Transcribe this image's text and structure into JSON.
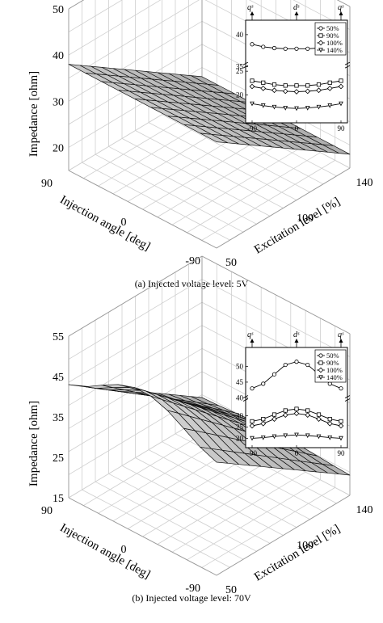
{
  "chart_data": [
    {
      "type": "surface",
      "title": "",
      "caption": "(a) Injected voltage level: 5V",
      "zlabel": "Impedance [ohm]",
      "xlabel": "Injection angle [deg]",
      "ylabel": "Excitation level [%]",
      "zlim": [
        15,
        50
      ],
      "z_ticks": [
        "20",
        "30",
        "40",
        "50"
      ],
      "x_ticks": [
        "90",
        "0",
        "-90"
      ],
      "y_ticks": [
        "50",
        "100",
        "140"
      ],
      "surface": {
        "injection_angle_deg": [
          90,
          0,
          -90
        ],
        "excitation_level_pct": [
          50,
          140
        ],
        "impedance_at_50pct": [
          38,
          38,
          38
        ],
        "impedance_at_140pct": [
          18,
          18,
          18
        ]
      },
      "inset": {
        "x_ticks": [
          "-90",
          "0",
          "90"
        ],
        "y_ticks": [
          "20",
          "25",
          "35",
          "40"
        ],
        "top_markers": [
          "qˢ",
          "dˢ",
          "qˢ"
        ],
        "legend": [
          "50%",
          "90%",
          "100%",
          "140%"
        ],
        "x": [
          -90,
          -67.5,
          -45,
          -22.5,
          0,
          22.5,
          45,
          67.5,
          90
        ],
        "series": [
          {
            "name": "50%",
            "values": [
              38.5,
              38.1,
              37.9,
              37.8,
              37.8,
              37.8,
              37.9,
              38.1,
              38.5
            ]
          },
          {
            "name": "90%",
            "values": [
              23.0,
              22.6,
              22.2,
              22.0,
              22.0,
              22.0,
              22.2,
              22.6,
              23.0
            ]
          },
          {
            "name": "100%",
            "values": [
              21.8,
              21.4,
              21.0,
              20.8,
              20.7,
              20.8,
              21.0,
              21.4,
              21.8
            ]
          },
          {
            "name": "140%",
            "values": [
              18.2,
              17.8,
              17.5,
              17.3,
              17.2,
              17.3,
              17.5,
              17.8,
              18.2
            ]
          }
        ]
      }
    },
    {
      "type": "surface",
      "title": "",
      "caption": "(b) Injected voltage level: 70V",
      "zlabel": "Impedance [ohm]",
      "xlabel": "Injection angle [deg]",
      "ylabel": "Excitation level [%]",
      "zlim": [
        15,
        55
      ],
      "z_ticks": [
        "15",
        "25",
        "35",
        "45",
        "55"
      ],
      "x_ticks": [
        "90",
        "0",
        "-90"
      ],
      "y_ticks": [
        "50",
        "100",
        "140"
      ],
      "surface": {
        "injection_angle_deg": [
          90,
          0,
          -90
        ],
        "excitation_level_pct": [
          50,
          140
        ],
        "impedance_at_50pct": [
          43,
          51,
          43
        ],
        "impedance_at_140pct": [
          20,
          21,
          20
        ]
      },
      "inset": {
        "x_ticks": [
          "-90",
          "0",
          "90"
        ],
        "y_ticks": [
          "20",
          "25",
          "30",
          "40",
          "45",
          "50"
        ],
        "top_markers": [
          "qˢ",
          "dˢ",
          "qˢ"
        ],
        "legend": [
          "50%",
          "90%",
          "100%",
          "140%"
        ],
        "x": [
          -90,
          -67.5,
          -45,
          -22.5,
          0,
          22.5,
          45,
          67.5,
          90
        ],
        "series": [
          {
            "name": "50%",
            "values": [
              43.0,
              44.5,
              47.5,
              50.5,
              51.5,
              50.5,
              47.5,
              44.5,
              43.0
            ]
          },
          {
            "name": "90%",
            "values": [
              27.5,
              28.5,
              30.5,
              32.3,
              33.0,
              32.3,
              30.5,
              28.5,
              27.5
            ]
          },
          {
            "name": "100%",
            "values": [
              25.5,
              26.5,
              28.5,
              30.3,
              31.0,
              30.3,
              28.5,
              26.5,
              25.5
            ]
          },
          {
            "name": "140%",
            "values": [
              20.0,
              20.3,
              20.8,
              21.2,
              21.5,
              21.2,
              20.8,
              20.3,
              20.0
            ]
          }
        ]
      }
    }
  ]
}
